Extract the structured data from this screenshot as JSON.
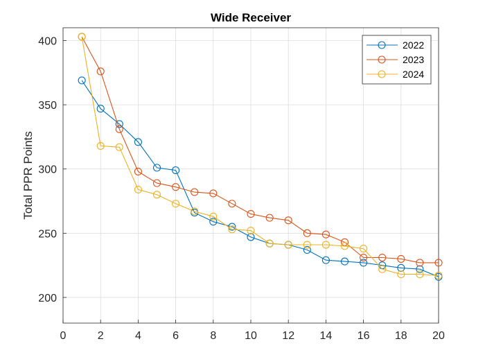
{
  "chart_data": {
    "type": "line",
    "title": "Wide Receiver",
    "xlabel": "",
    "ylabel": "Total PPR Points",
    "xlim": [
      0,
      20
    ],
    "ylim": [
      180,
      410
    ],
    "xticks": [
      0,
      2,
      4,
      6,
      8,
      10,
      12,
      14,
      16,
      18,
      20
    ],
    "yticks": [
      200,
      250,
      300,
      350,
      400
    ],
    "grid": true,
    "legend_position": "top-right",
    "marker": "circle",
    "x": [
      1,
      2,
      3,
      4,
      5,
      6,
      7,
      8,
      9,
      10,
      11,
      12,
      13,
      14,
      15,
      16,
      17,
      18,
      19,
      20
    ],
    "series": [
      {
        "name": "2022",
        "color": "#0072BD",
        "values": [
          369,
          347,
          335,
          321,
          301,
          299,
          266,
          259,
          255,
          247,
          242,
          241,
          237,
          229,
          228,
          227,
          225,
          223,
          222,
          216
        ]
      },
      {
        "name": "2023",
        "color": "#D95319",
        "values": [
          403,
          376,
          331,
          298,
          289,
          286,
          282,
          281,
          273,
          265,
          262,
          260,
          250,
          249,
          243,
          231,
          231,
          230,
          227,
          227
        ]
      },
      {
        "name": "2024",
        "color": "#EDB120",
        "values": [
          403,
          318,
          317,
          284,
          280,
          273,
          267,
          263,
          253,
          252,
          242,
          241,
          241,
          241,
          240,
          238,
          222,
          218,
          218,
          217
        ]
      }
    ]
  }
}
